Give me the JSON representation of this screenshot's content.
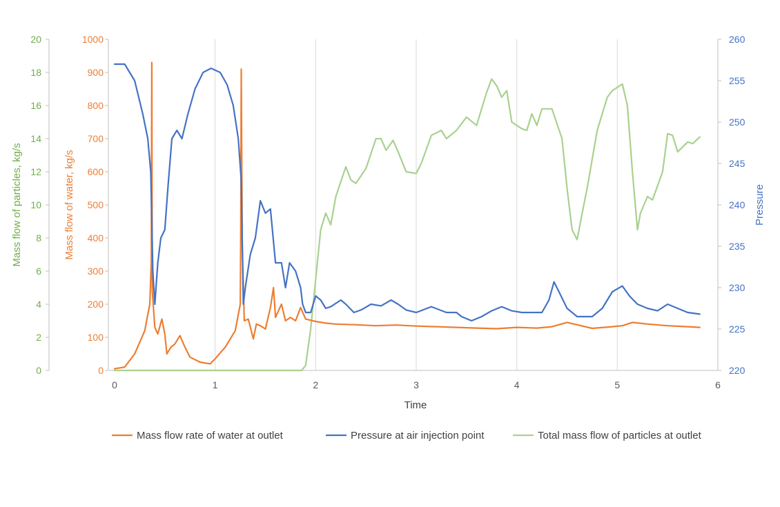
{
  "chart_data": {
    "type": "line",
    "xlabel": "Time",
    "xlim": [
      0,
      6
    ],
    "x_ticks": [
      "0",
      "1",
      "2",
      "3",
      "4",
      "5",
      "6"
    ],
    "axes": {
      "left_particles": {
        "label": "Mass flow of particles, kg/s",
        "range": [
          0,
          20
        ],
        "ticks": [
          "0",
          "2",
          "4",
          "6",
          "8",
          "10",
          "12",
          "14",
          "16",
          "18",
          "20"
        ],
        "color": "#70ad47"
      },
      "left_water": {
        "label": "Mass flow of water, kg/s",
        "range": [
          0,
          1000
        ],
        "ticks": [
          "0",
          "100",
          "200",
          "300",
          "400",
          "500",
          "600",
          "700",
          "800",
          "900",
          "1000"
        ],
        "color": "#ed7d31"
      },
      "right_pressure": {
        "label": "Pressure",
        "range": [
          220,
          260
        ],
        "ticks": [
          "220",
          "225",
          "230",
          "235",
          "240",
          "245",
          "250",
          "255",
          "260"
        ],
        "color": "#4472c4"
      }
    },
    "grid": "vertical",
    "legend_position": "bottom",
    "series": [
      {
        "name": "Mass flow rate of water at outlet",
        "axis": "left_water",
        "color": "#ed7d31",
        "points": [
          [
            0,
            5
          ],
          [
            0.1,
            10
          ],
          [
            0.2,
            50
          ],
          [
            0.3,
            120
          ],
          [
            0.35,
            200
          ],
          [
            0.365,
            330
          ],
          [
            0.37,
            930
          ],
          [
            0.375,
            240
          ],
          [
            0.4,
            130
          ],
          [
            0.43,
            110
          ],
          [
            0.47,
            155
          ],
          [
            0.5,
            110
          ],
          [
            0.52,
            50
          ],
          [
            0.56,
            70
          ],
          [
            0.6,
            80
          ],
          [
            0.65,
            105
          ],
          [
            0.7,
            70
          ],
          [
            0.75,
            40
          ],
          [
            0.85,
            25
          ],
          [
            0.95,
            20
          ],
          [
            1.0,
            35
          ],
          [
            1.1,
            70
          ],
          [
            1.2,
            120
          ],
          [
            1.25,
            200
          ],
          [
            1.255,
            420
          ],
          [
            1.26,
            910
          ],
          [
            1.27,
            370
          ],
          [
            1.29,
            150
          ],
          [
            1.33,
            155
          ],
          [
            1.38,
            95
          ],
          [
            1.41,
            140
          ],
          [
            1.45,
            135
          ],
          [
            1.5,
            125
          ],
          [
            1.55,
            190
          ],
          [
            1.58,
            250
          ],
          [
            1.6,
            160
          ],
          [
            1.63,
            180
          ],
          [
            1.66,
            200
          ],
          [
            1.7,
            150
          ],
          [
            1.75,
            160
          ],
          [
            1.8,
            150
          ],
          [
            1.85,
            190
          ],
          [
            1.9,
            155
          ],
          [
            2.0,
            148
          ],
          [
            2.1,
            143
          ],
          [
            2.2,
            140
          ],
          [
            2.4,
            138
          ],
          [
            2.6,
            135
          ],
          [
            2.8,
            137
          ],
          [
            3.0,
            134
          ],
          [
            3.2,
            132
          ],
          [
            3.4,
            130
          ],
          [
            3.6,
            128
          ],
          [
            3.8,
            126
          ],
          [
            4.0,
            130
          ],
          [
            4.2,
            128
          ],
          [
            4.35,
            132
          ],
          [
            4.5,
            145
          ],
          [
            4.6,
            138
          ],
          [
            4.75,
            127
          ],
          [
            4.95,
            132
          ],
          [
            5.05,
            135
          ],
          [
            5.15,
            145
          ],
          [
            5.3,
            140
          ],
          [
            5.5,
            135
          ],
          [
            5.7,
            132
          ],
          [
            5.82,
            130
          ]
        ]
      },
      {
        "name": "Pressure at air injection point",
        "axis": "right_pressure",
        "color": "#4472c4",
        "points": [
          [
            0,
            257
          ],
          [
            0.1,
            257
          ],
          [
            0.2,
            255
          ],
          [
            0.28,
            251
          ],
          [
            0.33,
            248
          ],
          [
            0.36,
            244
          ],
          [
            0.38,
            232
          ],
          [
            0.4,
            228
          ],
          [
            0.43,
            233
          ],
          [
            0.46,
            236
          ],
          [
            0.5,
            237
          ],
          [
            0.53,
            242
          ],
          [
            0.57,
            248
          ],
          [
            0.62,
            249
          ],
          [
            0.67,
            248
          ],
          [
            0.73,
            251
          ],
          [
            0.8,
            254
          ],
          [
            0.88,
            256
          ],
          [
            0.96,
            256.5
          ],
          [
            1.05,
            256
          ],
          [
            1.12,
            254.5
          ],
          [
            1.18,
            252
          ],
          [
            1.23,
            248
          ],
          [
            1.26,
            243
          ],
          [
            1.28,
            228
          ],
          [
            1.3,
            230
          ],
          [
            1.35,
            234
          ],
          [
            1.4,
            236
          ],
          [
            1.45,
            240.5
          ],
          [
            1.5,
            239
          ],
          [
            1.55,
            239.5
          ],
          [
            1.6,
            233
          ],
          [
            1.66,
            233
          ],
          [
            1.7,
            230
          ],
          [
            1.74,
            233
          ],
          [
            1.8,
            232
          ],
          [
            1.85,
            230
          ],
          [
            1.87,
            228
          ],
          [
            1.9,
            227
          ],
          [
            1.95,
            227
          ],
          [
            2.0,
            229
          ],
          [
            2.05,
            228.5
          ],
          [
            2.1,
            227.5
          ],
          [
            2.15,
            227.7
          ],
          [
            2.25,
            228.5
          ],
          [
            2.3,
            228
          ],
          [
            2.38,
            227
          ],
          [
            2.45,
            227.3
          ],
          [
            2.55,
            228
          ],
          [
            2.65,
            227.8
          ],
          [
            2.75,
            228.5
          ],
          [
            2.82,
            228
          ],
          [
            2.9,
            227.3
          ],
          [
            3.0,
            227
          ],
          [
            3.15,
            227.7
          ],
          [
            3.3,
            227
          ],
          [
            3.4,
            227
          ],
          [
            3.45,
            226.5
          ],
          [
            3.55,
            226
          ],
          [
            3.65,
            226.5
          ],
          [
            3.75,
            227.2
          ],
          [
            3.85,
            227.7
          ],
          [
            3.95,
            227.2
          ],
          [
            4.05,
            227
          ],
          [
            4.25,
            227
          ],
          [
            4.32,
            228.5
          ],
          [
            4.37,
            230.7
          ],
          [
            4.42,
            229.5
          ],
          [
            4.5,
            227.5
          ],
          [
            4.6,
            226.5
          ],
          [
            4.75,
            226.5
          ],
          [
            4.85,
            227.5
          ],
          [
            4.95,
            229.5
          ],
          [
            5.05,
            230.2
          ],
          [
            5.12,
            229
          ],
          [
            5.2,
            228
          ],
          [
            5.3,
            227.5
          ],
          [
            5.4,
            227.2
          ],
          [
            5.5,
            228
          ],
          [
            5.6,
            227.5
          ],
          [
            5.7,
            227
          ],
          [
            5.82,
            226.8
          ]
        ]
      },
      {
        "name": "Total mass flow of particles at outlet",
        "axis": "left_particles",
        "color": "#a9d18e",
        "points": [
          [
            0,
            0
          ],
          [
            1.86,
            0
          ],
          [
            1.9,
            0.3
          ],
          [
            1.95,
            2.5
          ],
          [
            2.0,
            5.5
          ],
          [
            2.05,
            8.5
          ],
          [
            2.1,
            9.5
          ],
          [
            2.15,
            8.8
          ],
          [
            2.2,
            10.5
          ],
          [
            2.3,
            12.3
          ],
          [
            2.35,
            11.5
          ],
          [
            2.4,
            11.3
          ],
          [
            2.5,
            12.2
          ],
          [
            2.6,
            14
          ],
          [
            2.65,
            14
          ],
          [
            2.7,
            13.3
          ],
          [
            2.77,
            13.9
          ],
          [
            2.82,
            13.2
          ],
          [
            2.9,
            12
          ],
          [
            3.0,
            11.9
          ],
          [
            3.05,
            12.5
          ],
          [
            3.15,
            14.2
          ],
          [
            3.25,
            14.5
          ],
          [
            3.3,
            14
          ],
          [
            3.4,
            14.5
          ],
          [
            3.5,
            15.3
          ],
          [
            3.6,
            14.8
          ],
          [
            3.7,
            16.8
          ],
          [
            3.75,
            17.6
          ],
          [
            3.8,
            17.2
          ],
          [
            3.85,
            16.5
          ],
          [
            3.9,
            16.9
          ],
          [
            3.95,
            15
          ],
          [
            4.0,
            14.8
          ],
          [
            4.05,
            14.6
          ],
          [
            4.1,
            14.5
          ],
          [
            4.15,
            15.5
          ],
          [
            4.2,
            14.8
          ],
          [
            4.25,
            15.8
          ],
          [
            4.35,
            15.8
          ],
          [
            4.45,
            14
          ],
          [
            4.5,
            11
          ],
          [
            4.55,
            8.5
          ],
          [
            4.6,
            7.9
          ],
          [
            4.65,
            9.5
          ],
          [
            4.7,
            11
          ],
          [
            4.8,
            14.5
          ],
          [
            4.9,
            16.5
          ],
          [
            4.95,
            16.9
          ],
          [
            5.05,
            17.3
          ],
          [
            5.1,
            16
          ],
          [
            5.15,
            12
          ],
          [
            5.2,
            8.5
          ],
          [
            5.23,
            9.5
          ],
          [
            5.3,
            10.5
          ],
          [
            5.35,
            10.3
          ],
          [
            5.45,
            12
          ],
          [
            5.5,
            14.3
          ],
          [
            5.55,
            14.2
          ],
          [
            5.6,
            13.2
          ],
          [
            5.7,
            13.8
          ],
          [
            5.75,
            13.7
          ],
          [
            5.82,
            14.1
          ]
        ]
      }
    ]
  }
}
